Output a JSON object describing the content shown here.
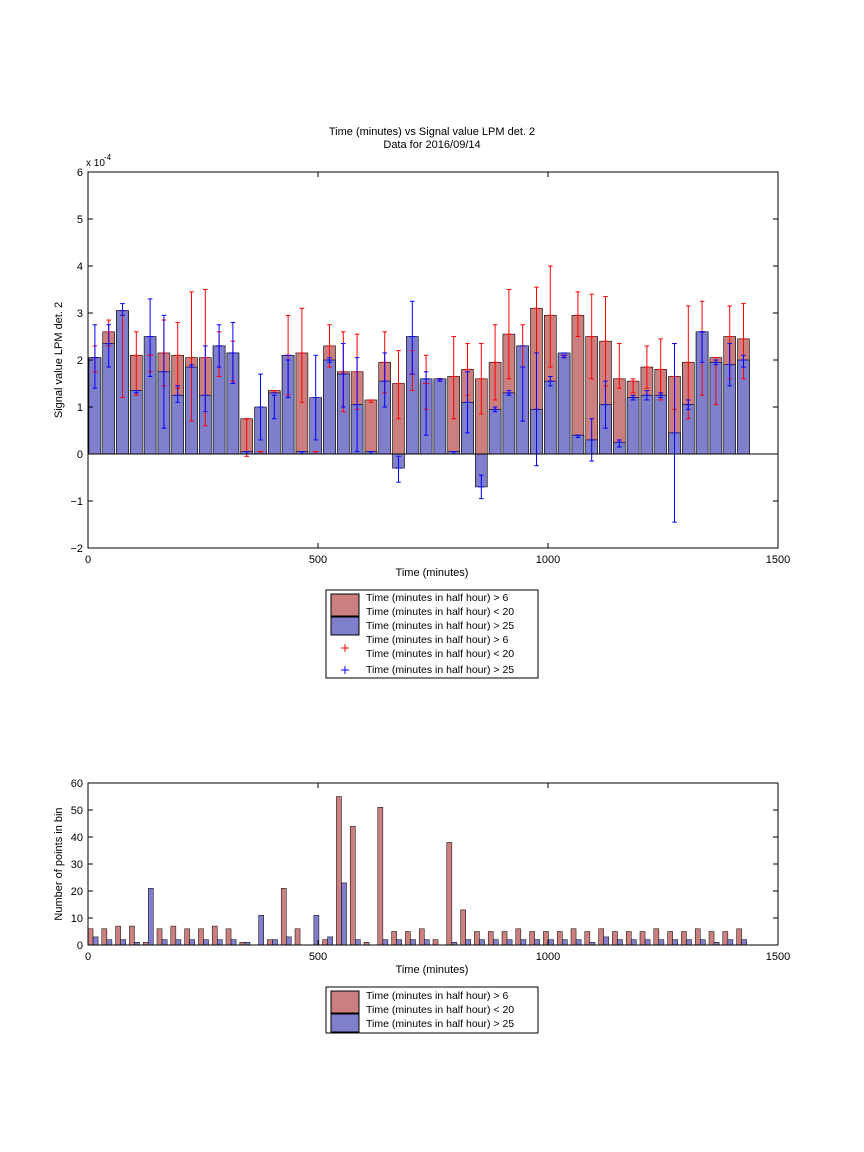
{
  "colors": {
    "bar_red": "#cc7f7f",
    "bar_blue": "#7f7fcc",
    "err_red": "#ff0000",
    "err_blue": "#0000ff"
  },
  "chart_data": [
    {
      "type": "bar",
      "title": "Time (minutes) vs Signal value LPM det. 2",
      "subtitle": "Data for 2016/09/14",
      "xlabel": "Time (minutes)",
      "ylabel": "Signal value LPM det. 2",
      "y_exponent_label": "x 10",
      "y_exponent_power": "-4",
      "xlim": [
        0,
        1500
      ],
      "ylim": [
        -2,
        6
      ],
      "xticks": [
        "0",
        "500",
        "1000",
        "1500"
      ],
      "yticks": [
        "−2",
        "−1",
        "0",
        "1",
        "2",
        "3",
        "4",
        "5",
        "6"
      ],
      "legend_position": "below",
      "legend": [
        {
          "label_line1": "Time (minutes in half hour) > 6",
          "label_line2": "Time (minutes in half hour) < 20"
        },
        {
          "label_line1": "Time (minutes in half hour) > 25",
          "label_line2": ""
        },
        {
          "label_line1": "Time (minutes in half hour) > 6",
          "label_line2": "Time (minutes in half hour) < 20"
        },
        {
          "label_line1": "Time (minutes in half hour) > 25",
          "label_line2": ""
        }
      ],
      "series": [
        {
          "label": "Time (minutes in half hour) > 6 / < 20",
          "points": [
            [
              15,
              2.05,
              1.75,
              2.3
            ],
            [
              45,
              2.6,
              2.3,
              2.85
            ],
            [
              75,
              3.05,
              1.2,
              2.95
            ],
            [
              105,
              2.1,
              1.25,
              2.6
            ],
            [
              135,
              2.1,
              1.75,
              2.1
            ],
            [
              165,
              2.15,
              1.45,
              2.85
            ],
            [
              195,
              2.1,
              1.4,
              2.8
            ],
            [
              225,
              2.05,
              0.7,
              3.45
            ],
            [
              255,
              2.05,
              0.6,
              3.5
            ],
            [
              285,
              2.3,
              1.65,
              2.6
            ],
            [
              315,
              2.15,
              1.55,
              2.4
            ],
            [
              345,
              0.75,
              -0.05,
              0.75
            ],
            [
              375,
              0.05,
              0.0,
              0.05
            ],
            [
              405,
              1.35,
              1.3,
              1.35
            ],
            [
              435,
              2.1,
              1.25,
              2.95
            ],
            [
              465,
              2.15,
              1.1,
              3.1
            ],
            [
              495,
              0.05,
              0.0,
              0.05
            ],
            [
              525,
              2.3,
              1.85,
              2.75
            ],
            [
              555,
              1.75,
              0.9,
              2.6
            ],
            [
              585,
              1.75,
              0.95,
              2.55
            ],
            [
              615,
              1.15,
              1.1,
              1.15
            ],
            [
              645,
              1.95,
              1.3,
              2.6
            ],
            [
              675,
              1.5,
              0.75,
              2.2
            ],
            [
              705,
              1.7,
              1.35,
              2.2
            ],
            [
              735,
              1.5,
              0.95,
              2.1
            ],
            [
              765,
              1.6,
              1.55,
              1.6
            ],
            [
              795,
              1.65,
              0.75,
              2.5
            ],
            [
              825,
              1.8,
              1.25,
              2.35
            ],
            [
              855,
              1.6,
              0.85,
              2.35
            ],
            [
              885,
              1.95,
              1.15,
              2.75
            ],
            [
              915,
              2.55,
              1.6,
              3.5
            ],
            [
              945,
              2.3,
              1.85,
              2.75
            ],
            [
              975,
              3.1,
              0.95,
              3.55
            ],
            [
              1005,
              2.95,
              1.85,
              4.0
            ],
            [
              1035,
              2.1,
              2.05,
              2.1
            ],
            [
              1065,
              2.95,
              2.5,
              3.45
            ],
            [
              1095,
              2.5,
              1.6,
              3.4
            ],
            [
              1125,
              2.4,
              1.45,
              3.35
            ],
            [
              1155,
              1.6,
              1.4,
              2.35
            ],
            [
              1185,
              1.55,
              1.3,
              1.6
            ],
            [
              1215,
              1.85,
              1.4,
              2.3
            ],
            [
              1245,
              1.8,
              1.15,
              2.45
            ],
            [
              1275,
              1.65,
              0.95,
              2.35
            ],
            [
              1305,
              1.95,
              0.75,
              3.15
            ],
            [
              1335,
              2.6,
              1.25,
              3.25
            ],
            [
              1365,
              2.05,
              1.05,
              2.0
            ],
            [
              1395,
              2.5,
              1.6,
              3.15
            ],
            [
              1425,
              2.45,
              1.6,
              3.2
            ]
          ]
        },
        {
          "label": "Time (minutes in half hour) > 25",
          "points": [
            [
              15,
              2.05,
              1.4,
              2.75
            ],
            [
              45,
              2.35,
              1.85,
              2.75
            ],
            [
              75,
              3.05,
              2.95,
              3.2
            ],
            [
              105,
              1.35,
              1.3,
              1.35
            ],
            [
              135,
              2.5,
              1.65,
              3.3
            ],
            [
              165,
              1.75,
              0.55,
              2.95
            ],
            [
              195,
              1.25,
              1.1,
              1.45
            ],
            [
              225,
              1.85,
              1.85,
              1.9
            ],
            [
              255,
              1.25,
              0.9,
              2.3
            ],
            [
              285,
              2.3,
              1.85,
              2.75
            ],
            [
              315,
              2.15,
              1.5,
              2.8
            ],
            [
              345,
              0.05,
              0.0,
              0.05
            ],
            [
              375,
              1.0,
              0.3,
              1.7
            ],
            [
              405,
              1.3,
              0.75,
              1.25
            ],
            [
              435,
              2.1,
              1.2,
              2.0
            ],
            [
              465,
              0.05,
              0.0,
              0.05
            ],
            [
              495,
              1.2,
              0.3,
              2.1
            ],
            [
              525,
              2.0,
              1.95,
              2.05
            ],
            [
              555,
              1.7,
              1.0,
              2.35
            ],
            [
              585,
              1.05,
              0.05,
              2.05
            ],
            [
              615,
              0.05,
              0.0,
              0.05
            ],
            [
              645,
              1.55,
              1.0,
              2.15
            ],
            [
              675,
              -0.3,
              -0.6,
              -0.05
            ],
            [
              705,
              2.5,
              1.7,
              3.25
            ],
            [
              735,
              1.6,
              0.4,
              1.75
            ],
            [
              765,
              1.6,
              1.55,
              1.6
            ],
            [
              795,
              0.05,
              0.0,
              0.05
            ],
            [
              825,
              1.1,
              0.45,
              1.75
            ],
            [
              855,
              -0.7,
              -0.95,
              -0.45
            ],
            [
              885,
              0.95,
              0.9,
              1.0
            ],
            [
              915,
              1.3,
              1.25,
              1.35
            ],
            [
              945,
              2.3,
              0.7,
              1.85
            ],
            [
              975,
              0.95,
              -0.25,
              2.15
            ],
            [
              1005,
              1.55,
              1.45,
              1.65
            ],
            [
              1035,
              2.15,
              2.05,
              2.1
            ],
            [
              1065,
              0.4,
              0.35,
              0.4
            ],
            [
              1095,
              0.3,
              -0.15,
              0.75
            ],
            [
              1125,
              1.05,
              0.55,
              1.55
            ],
            [
              1155,
              0.25,
              0.15,
              0.3
            ],
            [
              1185,
              1.2,
              1.15,
              1.25
            ],
            [
              1215,
              1.25,
              1.15,
              1.35
            ],
            [
              1245,
              1.25,
              1.2,
              1.3
            ],
            [
              1275,
              0.45,
              -1.45,
              2.35
            ],
            [
              1305,
              1.05,
              0.95,
              1.15
            ],
            [
              1335,
              2.6,
              1.95,
              2.6
            ],
            [
              1365,
              1.95,
              1.9,
              2.0
            ],
            [
              1395,
              1.9,
              1.45,
              2.35
            ],
            [
              1425,
              2.0,
              1.85,
              2.1
            ]
          ]
        }
      ]
    },
    {
      "type": "bar",
      "xlabel": "Time (minutes)",
      "ylabel": "Number of points in bin",
      "xlim": [
        0,
        1500
      ],
      "ylim": [
        0,
        60
      ],
      "xticks": [
        "0",
        "500",
        "1000",
        "1500"
      ],
      "yticks": [
        "0",
        "10",
        "20",
        "30",
        "40",
        "50",
        "60"
      ],
      "legend_position": "below",
      "legend": [
        {
          "label_line1": "Time (minutes in half hour) > 6",
          "label_line2": "Time (minutes in half hour) < 20"
        },
        {
          "label_line1": "Time (minutes in half hour) > 25",
          "label_line2": ""
        }
      ],
      "series": [
        {
          "label": "Time (minutes in half hour) > 6 / < 20",
          "x": [
            0,
            30,
            60,
            90,
            120,
            150,
            180,
            210,
            240,
            270,
            300,
            330,
            360,
            390,
            420,
            450,
            480,
            510,
            540,
            570,
            600,
            630,
            660,
            690,
            720,
            750,
            780,
            810,
            840,
            870,
            900,
            930,
            960,
            990,
            1020,
            1050,
            1080,
            1110,
            1140,
            1170,
            1200,
            1230,
            1260,
            1290,
            1320,
            1350,
            1380,
            1410
          ],
          "values": [
            6,
            6,
            7,
            7,
            1,
            6,
            7,
            6,
            6,
            7,
            6,
            1,
            0,
            2,
            21,
            6,
            0,
            2,
            55,
            44,
            1,
            51,
            5,
            5,
            6,
            2,
            38,
            13,
            5,
            5,
            5,
            6,
            5,
            5,
            5,
            6,
            5,
            6,
            5,
            5,
            5,
            6,
            5,
            5,
            6,
            5,
            5,
            6
          ]
        },
        {
          "label": "Time (minutes in half hour) > 25",
          "x": [
            0,
            30,
            60,
            90,
            120,
            150,
            180,
            210,
            240,
            270,
            300,
            330,
            360,
            390,
            420,
            450,
            480,
            510,
            540,
            570,
            600,
            630,
            660,
            690,
            720,
            750,
            780,
            810,
            840,
            870,
            900,
            930,
            960,
            990,
            1020,
            1050,
            1080,
            1110,
            1140,
            1170,
            1200,
            1230,
            1260,
            1290,
            1320,
            1350,
            1380,
            1410
          ],
          "values": [
            3,
            2,
            2,
            1,
            21,
            2,
            2,
            2,
            2,
            2,
            2,
            1,
            11,
            2,
            3,
            0,
            11,
            3,
            23,
            2,
            0,
            2,
            2,
            2,
            2,
            0,
            1,
            2,
            2,
            2,
            2,
            2,
            2,
            2,
            2,
            2,
            1,
            3,
            2,
            2,
            2,
            2,
            2,
            2,
            2,
            1,
            2,
            2
          ]
        }
      ]
    }
  ]
}
